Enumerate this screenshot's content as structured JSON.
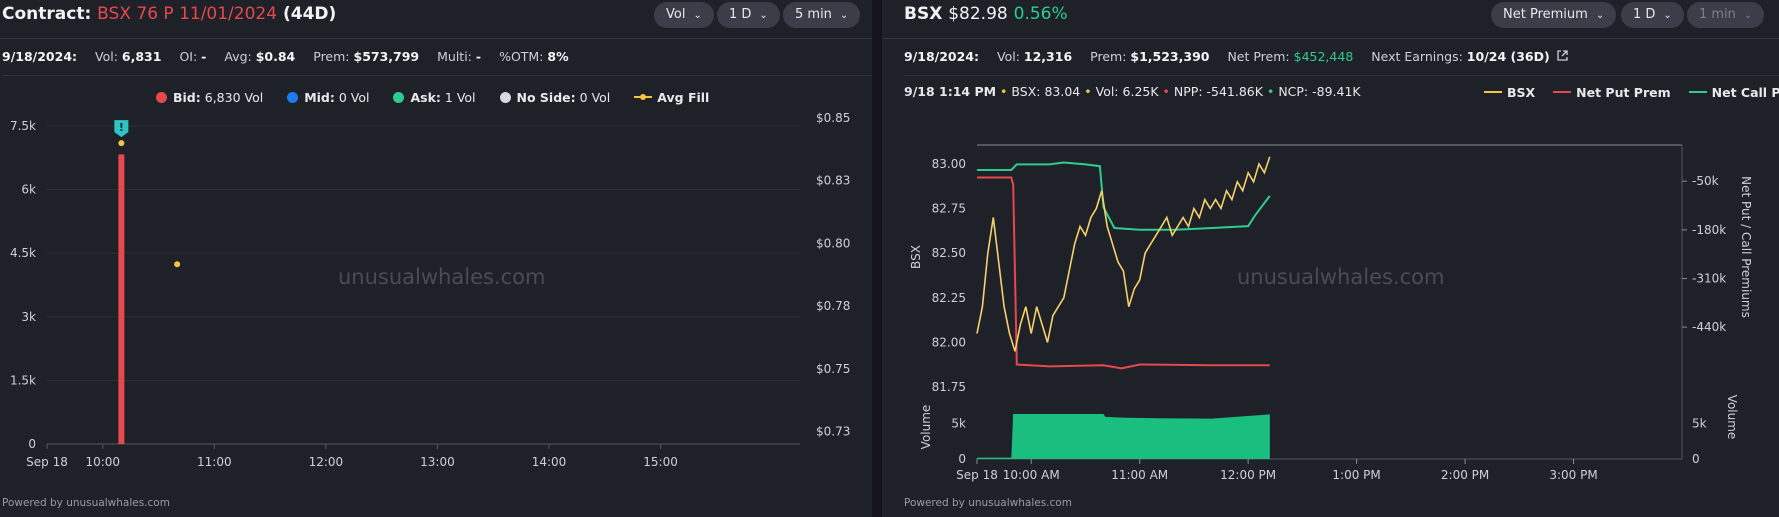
{
  "left": {
    "contract_label": "Contract:",
    "contract_name": "BSX 76 P 11/01/2024",
    "contract_days": "(44D)",
    "controls": {
      "metric": "Vol",
      "range": "1 D",
      "interval": "5 min"
    },
    "stats": {
      "date": "9/18/2024:",
      "vol_label": "Vol:",
      "vol": "6,831",
      "oi_label": "OI:",
      "oi": "-",
      "avg_label": "Avg:",
      "avg": "$0.84",
      "prem_label": "Prem:",
      "prem": "$573,799",
      "multi_label": "Multi:",
      "multi": "-",
      "otm_label": "%OTM:",
      "otm": "8%"
    },
    "legend": [
      {
        "label": "Bid:",
        "value": "6,830 Vol",
        "color": "#e5484d"
      },
      {
        "label": "Mid:",
        "value": "0 Vol",
        "color": "#1d7bf0"
      },
      {
        "label": "Ask:",
        "value": "1 Vol",
        "color": "#2ecc8e"
      },
      {
        "label": "No Side:",
        "value": "0 Vol",
        "color": "#d8d9de"
      },
      {
        "label": "Avg Fill",
        "value": "",
        "color": "#f5c542"
      }
    ],
    "watermark": "unusualwhales.com",
    "footer": "Powered by unusualwhales.com"
  },
  "right": {
    "ticker": "BSX",
    "price": "$82.98",
    "change": "0.56%",
    "controls": {
      "mode": "Net Premium",
      "range": "1 D",
      "interval": "1 min"
    },
    "stats": {
      "date": "9/18/2024:",
      "vol_label": "Vol:",
      "vol": "12,316",
      "prem_label": "Prem:",
      "prem": "$1,523,390",
      "netprem_label": "Net Prem:",
      "netprem": "$452,448",
      "earn_label": "Next Earnings:",
      "earn": "10/24 (36D)"
    },
    "info": {
      "time": "9/18 1:14 PM",
      "bsx_label": "BSX:",
      "bsx": "83.04",
      "vol_label": "Vol:",
      "vol": "6.25K",
      "npp_label": "NPP:",
      "npp": "-541.86K",
      "ncp_label": "NCP:",
      "ncp": "-89.41K"
    },
    "legend": [
      {
        "label": "BSX",
        "color": "#f5c542"
      },
      {
        "label": "Net Put Prem",
        "color": "#e5484d"
      },
      {
        "label": "Net Call Prem",
        "color": "#2ecc8e"
      }
    ],
    "watermark": "unusualwhales.com",
    "footer": "Powered by unusualwhales.com"
  },
  "chart_data": [
    {
      "type": "bar",
      "x_ticks": [
        "Sep 18",
        "10:00",
        "11:00",
        "12:00",
        "13:00",
        "14:00",
        "15:00"
      ],
      "x_tick_minutes": [
        570,
        600,
        660,
        720,
        780,
        840,
        900
      ],
      "xlim_minutes": [
        570,
        975
      ],
      "y_left_ticks": [
        "0",
        "1.5k",
        "3k",
        "4.5k",
        "6k",
        "7.5k"
      ],
      "y_left_values": [
        0,
        1500,
        3000,
        4500,
        6000,
        7500
      ],
      "ylim_left": [
        0,
        7500
      ],
      "y_right_ticks": [
        "$0.73",
        "$0.75",
        "$0.78",
        "$0.80",
        "$0.83",
        "$0.85"
      ],
      "y_right_values": [
        0.725,
        0.75,
        0.775,
        0.8,
        0.825,
        0.85
      ],
      "ylim_right": [
        0.72,
        0.85
      ],
      "bars": [
        {
          "minute": 610,
          "value": 6830,
          "side": "bid"
        }
      ],
      "avg_fill": [
        {
          "minute": 610,
          "value": 0.84
        },
        {
          "minute": 640,
          "value": 0.7917
        }
      ],
      "marker": {
        "minute": 610,
        "symbol": "!"
      }
    },
    {
      "type": "line",
      "x_ticks": [
        "Sep 18",
        "10:00 AM",
        "11:00 AM",
        "12:00 PM",
        "1:00 PM",
        "2:00 PM",
        "3:00 PM"
      ],
      "x_tick_minutes": [
        570,
        600,
        660,
        720,
        780,
        840,
        900
      ],
      "xlim_minutes": [
        570,
        960
      ],
      "y_left_label": "BSX",
      "y_left_ticks": [
        "81.75",
        "82.00",
        "82.25",
        "82.50",
        "82.75",
        "83.00"
      ],
      "y_left_values": [
        81.75,
        82.0,
        82.25,
        82.5,
        82.75,
        83.0
      ],
      "ylim_left": [
        81.75,
        83.05
      ],
      "y_right_label": "Net Put / Call Premiums",
      "y_right_ticks": [
        "-50k",
        "-180k",
        "-310k",
        "-440k"
      ],
      "y_right_values": [
        -50000,
        -180000,
        -310000,
        -440000
      ],
      "ylim_right": [
        -600000,
        20000
      ],
      "volume_label": "Volume",
      "volume_ticks": [
        "0",
        "5k"
      ],
      "volume_values": [
        0,
        5000
      ],
      "ylim_volume": [
        0,
        7000
      ],
      "series": [
        {
          "name": "BSX",
          "points": [
            [
              570,
              82.05
            ],
            [
              573,
              82.2
            ],
            [
              576,
              82.5
            ],
            [
              579,
              82.7
            ],
            [
              582,
              82.45
            ],
            [
              585,
              82.2
            ],
            [
              588,
              82.05
            ],
            [
              591,
              81.95
            ],
            [
              594,
              82.1
            ],
            [
              597,
              82.2
            ],
            [
              600,
              82.05
            ],
            [
              603,
              82.2
            ],
            [
              606,
              82.1
            ],
            [
              609,
              82.0
            ],
            [
              612,
              82.15
            ],
            [
              615,
              82.2
            ],
            [
              618,
              82.25
            ],
            [
              621,
              82.4
            ],
            [
              624,
              82.55
            ],
            [
              627,
              82.65
            ],
            [
              630,
              82.6
            ],
            [
              633,
              82.7
            ],
            [
              636,
              82.75
            ],
            [
              639,
              82.85
            ],
            [
              642,
              82.65
            ],
            [
              645,
              82.55
            ],
            [
              648,
              82.45
            ],
            [
              651,
              82.4
            ],
            [
              654,
              82.2
            ],
            [
              657,
              82.3
            ],
            [
              660,
              82.35
            ],
            [
              663,
              82.5
            ],
            [
              666,
              82.55
            ],
            [
              669,
              82.6
            ],
            [
              672,
              82.65
            ],
            [
              675,
              82.7
            ],
            [
              678,
              82.6
            ],
            [
              681,
              82.65
            ],
            [
              684,
              82.7
            ],
            [
              687,
              82.65
            ],
            [
              690,
              82.75
            ],
            [
              693,
              82.7
            ],
            [
              696,
              82.8
            ],
            [
              699,
              82.75
            ],
            [
              702,
              82.8
            ],
            [
              705,
              82.75
            ],
            [
              708,
              82.85
            ],
            [
              711,
              82.8
            ],
            [
              714,
              82.9
            ],
            [
              717,
              82.85
            ],
            [
              720,
              82.95
            ],
            [
              723,
              82.9
            ],
            [
              726,
              83.0
            ],
            [
              729,
              82.95
            ],
            [
              732,
              83.04
            ]
          ]
        },
        {
          "name": "Net Put Prem",
          "points": [
            [
              570,
              -40000
            ],
            [
              589,
              -40000
            ],
            [
              590,
              -60000
            ],
            [
              592,
              -540000
            ],
            [
              610,
              -545000
            ],
            [
              640,
              -542000
            ],
            [
              650,
              -550000
            ],
            [
              660,
              -540000
            ],
            [
              700,
              -542000
            ],
            [
              732,
              -541860
            ]
          ]
        },
        {
          "name": "Net Call Prem",
          "points": [
            [
              570,
              -20000
            ],
            [
              589,
              -20000
            ],
            [
              592,
              -5000
            ],
            [
              610,
              -5000
            ],
            [
              618,
              0
            ],
            [
              630,
              -5000
            ],
            [
              638,
              -10000
            ],
            [
              640,
              -120000
            ],
            [
              646,
              -175000
            ],
            [
              660,
              -180000
            ],
            [
              680,
              -180000
            ],
            [
              700,
              -175000
            ],
            [
              720,
              -170000
            ],
            [
              724,
              -140000
            ],
            [
              732,
              -89410
            ]
          ]
        },
        {
          "name": "Volume",
          "points": [
            [
              570,
              200
            ],
            [
              589,
              200
            ],
            [
              590,
              6300
            ],
            [
              640,
              6300
            ],
            [
              641,
              5900
            ],
            [
              650,
              5800
            ],
            [
              670,
              5700
            ],
            [
              700,
              5650
            ],
            [
              732,
              6250
            ]
          ]
        }
      ]
    }
  ]
}
